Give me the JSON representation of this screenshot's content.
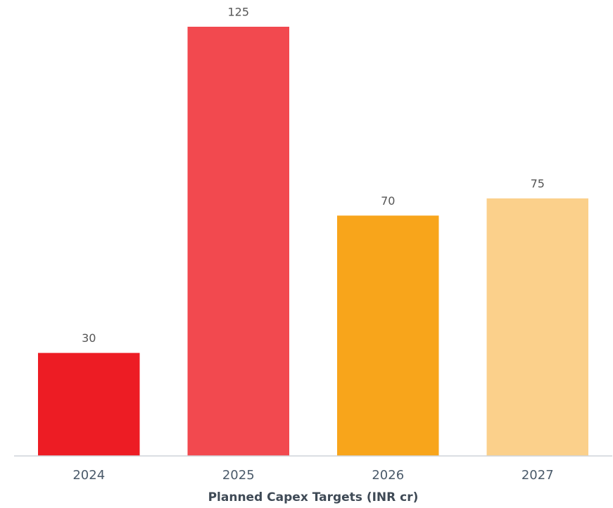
{
  "chart_data": {
    "type": "bar",
    "xlabel": "Planned Capex Targets (INR cr)",
    "categories": [
      "2024",
      "2025",
      "2026",
      "2027"
    ],
    "values": [
      30,
      125,
      70,
      75
    ],
    "colors": [
      "#ed1c24",
      "#f2494f",
      "#f8a51b",
      "#fbd08b"
    ],
    "ylim": [
      0,
      125
    ]
  }
}
